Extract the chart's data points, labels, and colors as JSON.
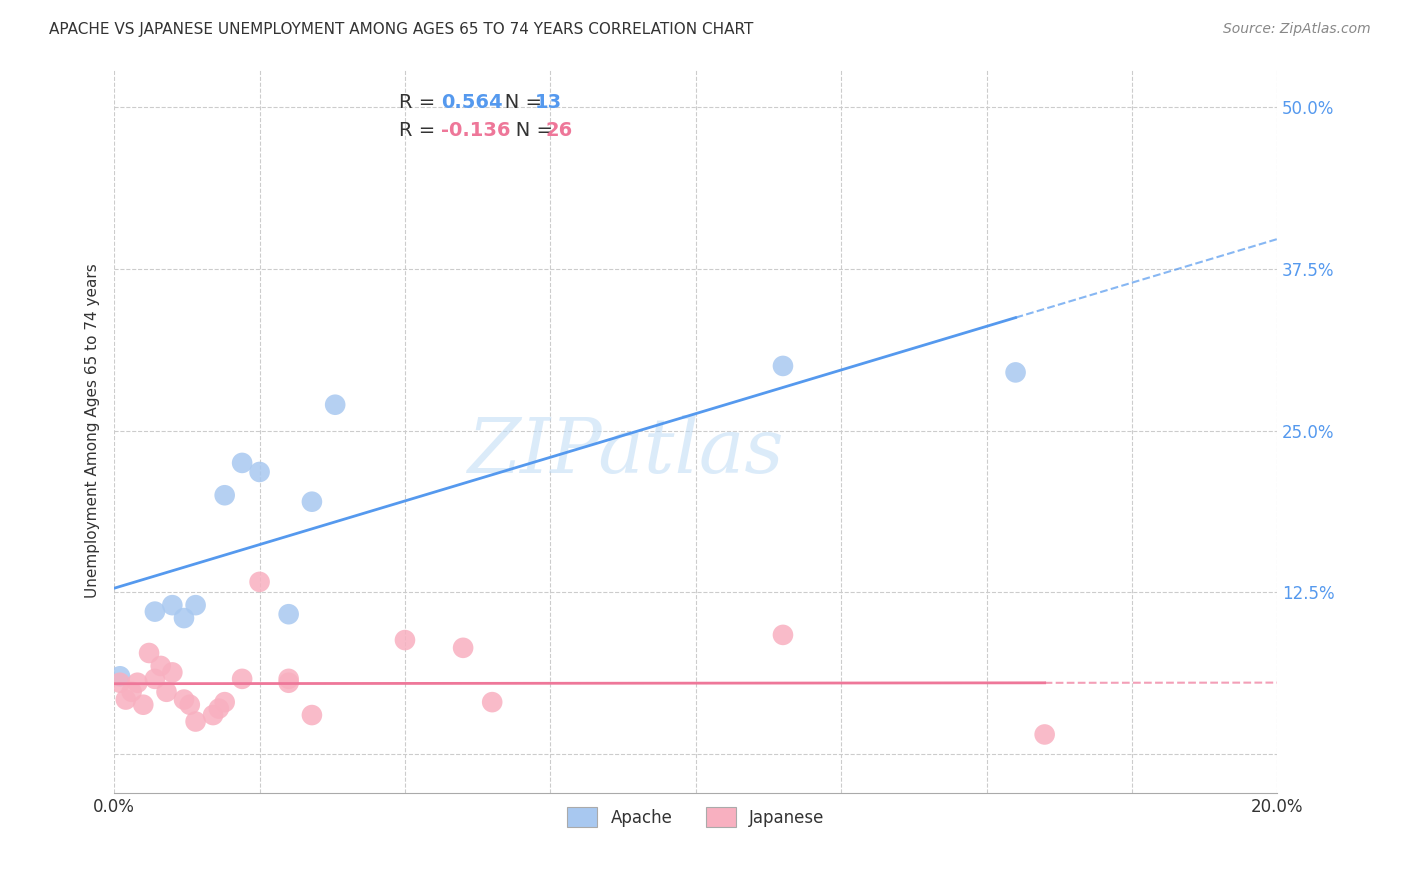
{
  "title": "APACHE VS JAPANESE UNEMPLOYMENT AMONG AGES 65 TO 74 YEARS CORRELATION CHART",
  "source": "Source: ZipAtlas.com",
  "ylabel": "Unemployment Among Ages 65 to 74 years",
  "xlim": [
    0.0,
    0.2
  ],
  "ylim": [
    -0.03,
    0.53
  ],
  "yticks": [
    0.0,
    0.125,
    0.25,
    0.375,
    0.5
  ],
  "ytick_labels": [
    "",
    "12.5%",
    "25.0%",
    "37.5%",
    "50.0%"
  ],
  "xticks": [
    0.0,
    0.025,
    0.05,
    0.075,
    0.1,
    0.125,
    0.15,
    0.175,
    0.2
  ],
  "xtick_labels": [
    "0.0%",
    "",
    "",
    "",
    "",
    "",
    "",
    "",
    "20.0%"
  ],
  "apache_R": 0.564,
  "apache_N": 13,
  "japanese_R": -0.136,
  "japanese_N": 26,
  "apache_color": "#a8c8f0",
  "japanese_color": "#f8b0c0",
  "apache_line_color": "#5599ee",
  "japanese_line_color": "#ee7799",
  "background_color": "#ffffff",
  "grid_color": "#cccccc",
  "watermark_text": "ZIPatlas",
  "apache_x": [
    0.001,
    0.007,
    0.01,
    0.012,
    0.014,
    0.019,
    0.022,
    0.025,
    0.03,
    0.034,
    0.038,
    0.115,
    0.155
  ],
  "apache_y": [
    0.06,
    0.11,
    0.115,
    0.105,
    0.115,
    0.2,
    0.225,
    0.218,
    0.108,
    0.195,
    0.27,
    0.3,
    0.295
  ],
  "japanese_x": [
    0.001,
    0.002,
    0.003,
    0.004,
    0.005,
    0.006,
    0.007,
    0.008,
    0.009,
    0.01,
    0.012,
    0.013,
    0.014,
    0.017,
    0.018,
    0.019,
    0.022,
    0.025,
    0.03,
    0.03,
    0.034,
    0.05,
    0.06,
    0.065,
    0.115,
    0.16
  ],
  "japanese_y": [
    0.055,
    0.042,
    0.048,
    0.055,
    0.038,
    0.078,
    0.058,
    0.068,
    0.048,
    0.063,
    0.042,
    0.038,
    0.025,
    0.03,
    0.035,
    0.04,
    0.058,
    0.133,
    0.058,
    0.055,
    0.03,
    0.088,
    0.082,
    0.04,
    0.092,
    0.015
  ],
  "title_fontsize": 11,
  "axis_label_fontsize": 11,
  "tick_fontsize": 12,
  "legend_fontsize": 14,
  "source_fontsize": 10
}
